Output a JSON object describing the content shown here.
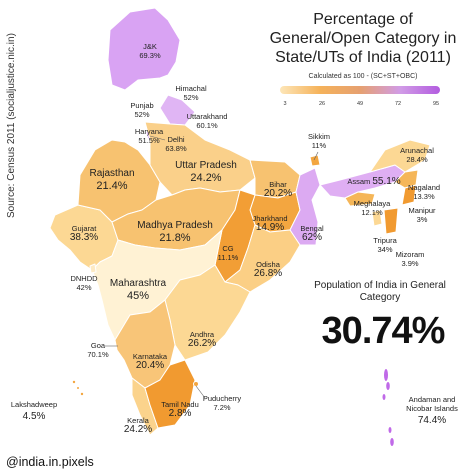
{
  "title_lines": [
    "Percentage of",
    "General/Open Category in",
    "State/UTs of India (2011)"
  ],
  "subtitle": "Calculated as 100 - (SC+ST+OBC)",
  "scale_ticks": [
    "3",
    "26",
    "49",
    "72",
    "95"
  ],
  "source": "Source: Census 2011 (socialjustice.nic.in)",
  "credit": "@india.in.pixels",
  "population_label": "Population of India in General Category",
  "population_value": "30.74%",
  "colors": {
    "low": "#f4a83a",
    "mid": "#fcd894",
    "pale": "#fff2d4",
    "high": "#cf8bf0",
    "highest": "#b85fe6"
  },
  "regions": [
    {
      "id": "jk",
      "name": "J&K",
      "value": "69.3%"
    },
    {
      "id": "himachal",
      "name": "Himachal",
      "value": "52%"
    },
    {
      "id": "punjab",
      "name": "Punjab",
      "value": "52%"
    },
    {
      "id": "uttarakhand",
      "name": "Uttarakhand",
      "value": "60.1%"
    },
    {
      "id": "haryana",
      "name": "Haryana",
      "value": "51.5%"
    },
    {
      "id": "delhi",
      "name": "Delhi",
      "value": "63.8%"
    },
    {
      "id": "rajasthan",
      "name": "Rajasthan",
      "value": "21.4%"
    },
    {
      "id": "uttar_pradesh",
      "name": "Uttar Pradesh",
      "value": "24.2%"
    },
    {
      "id": "bihar",
      "name": "Bihar",
      "value": "20.2%"
    },
    {
      "id": "sikkim",
      "name": "Sikkim",
      "value": "11%"
    },
    {
      "id": "arunachal",
      "name": "Arunachal",
      "value": "28.4%"
    },
    {
      "id": "assam",
      "name": "Assam",
      "value": "55.1%"
    },
    {
      "id": "nagaland",
      "name": "Nagaland",
      "value": "13.3%"
    },
    {
      "id": "meghalaya",
      "name": "Meghalaya",
      "value": "12.1%"
    },
    {
      "id": "manipur",
      "name": "Manipur",
      "value": "3%"
    },
    {
      "id": "tripura",
      "name": "Tripura",
      "value": "34%"
    },
    {
      "id": "mizoram",
      "name": "Mizoram",
      "value": "3.9%"
    },
    {
      "id": "gujarat",
      "name": "Gujarat",
      "value": "38.3%"
    },
    {
      "id": "madhya_pradesh",
      "name": "Madhya Pradesh",
      "value": "21.8%"
    },
    {
      "id": "jharkhand",
      "name": "Jharkhand",
      "value": "14.9%"
    },
    {
      "id": "bengal",
      "name": "Bengal",
      "value": "62%"
    },
    {
      "id": "dnhdd",
      "name": "DNHDD",
      "value": "42%"
    },
    {
      "id": "cg",
      "name": "CG",
      "value": "11.1%"
    },
    {
      "id": "odisha",
      "name": "Odisha",
      "value": "26.8%"
    },
    {
      "id": "maharashtra",
      "name": "Maharashtra",
      "value": "45%"
    },
    {
      "id": "andhra",
      "name": "Andhra",
      "value": "26.2%"
    },
    {
      "id": "goa",
      "name": "Goa",
      "value": "70.1%"
    },
    {
      "id": "karnataka",
      "name": "Karnataka",
      "value": "20.4%"
    },
    {
      "id": "tamil_nadu",
      "name": "Tamil Nadu",
      "value": "2.8%"
    },
    {
      "id": "puducherry",
      "name": "Puducherry",
      "value": "7.2%"
    },
    {
      "id": "lakshadweep",
      "name": "Lakshadweep",
      "value": "4.5%"
    },
    {
      "id": "kerala",
      "name": "Kerala",
      "value": "24.2%"
    },
    {
      "id": "andaman",
      "name": "Andaman and Nicobar Islands",
      "value": "74.4%"
    }
  ]
}
